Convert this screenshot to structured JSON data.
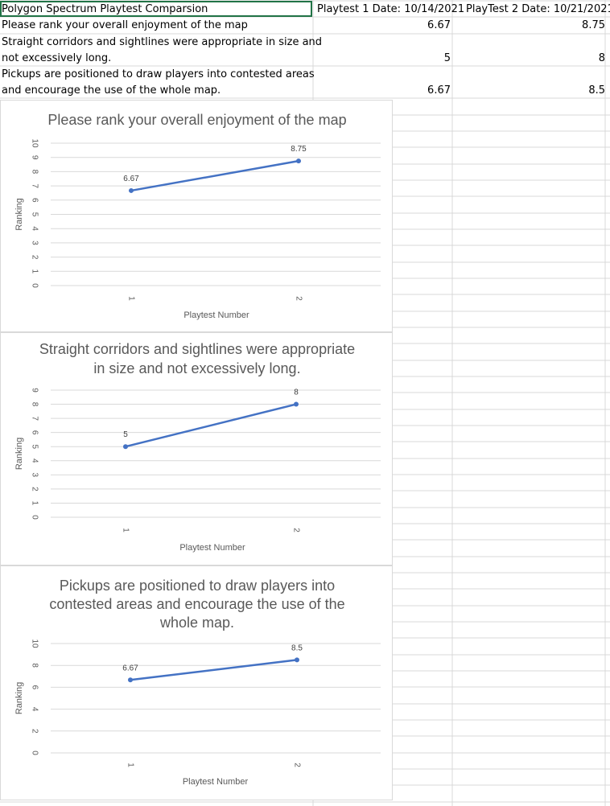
{
  "sheet": {
    "rows": [
      {
        "a": "Polygon Spectrum Playtest Comparsion",
        "b": "Playtest 1 Date: 10/14/2021",
        "c": "PlayTest 2 Date: 10/21/2021"
      },
      {
        "a": "Please rank your overall enjoyment of the map",
        "b": "6.67",
        "c": "8.75"
      },
      {
        "a1": "Straight corridors and sightlines were appropriate in size and",
        "a2": "not excessively long.",
        "b": "5",
        "c": "8"
      },
      {
        "a1": "Pickups are positioned to draw players into contested areas",
        "a2": "and encourage the use of the whole map.",
        "b": "6.67",
        "c": "8.5"
      }
    ]
  },
  "charts": [
    {
      "title_lines": [
        "Please rank your overall enjoyment of the map"
      ],
      "xlabel": "Playtest Number",
      "ylabel": "Ranking",
      "chart_data": {
        "type": "line",
        "x": [
          "1",
          "2"
        ],
        "values": [
          6.67,
          8.75
        ],
        "labels": [
          "6.67",
          "8.75"
        ],
        "yticks": [
          "0",
          "1",
          "2",
          "3",
          "4",
          "5",
          "6",
          "7",
          "8",
          "9",
          "10"
        ],
        "ylim": [
          0,
          10
        ],
        "grid": true,
        "color": "#4472c4"
      }
    },
    {
      "title_lines": [
        "Straight corridors and sightlines were appropriate",
        "in size and not excessively long."
      ],
      "xlabel": "Playtest Number",
      "ylabel": "Ranking",
      "chart_data": {
        "type": "line",
        "x": [
          "1",
          "2"
        ],
        "values": [
          5,
          8
        ],
        "labels": [
          "5",
          "8"
        ],
        "yticks": [
          "0",
          "1",
          "2",
          "3",
          "4",
          "5",
          "6",
          "7",
          "8",
          "9"
        ],
        "ylim": [
          0,
          9
        ],
        "grid": true,
        "color": "#4472c4"
      }
    },
    {
      "title_lines": [
        "Pickups are positioned to draw players into",
        "contested areas and encourage the use of the",
        "whole map."
      ],
      "xlabel": "Playtest Number",
      "ylabel": "Ranking",
      "chart_data": {
        "type": "line",
        "x": [
          "1",
          "2"
        ],
        "values": [
          6.67,
          8.5
        ],
        "labels": [
          "6.67",
          "8.5"
        ],
        "yticks": [
          "0",
          "2",
          "4",
          "6",
          "8",
          "10"
        ],
        "ylim": [
          0,
          10
        ],
        "grid": true,
        "color": "#4472c4"
      }
    }
  ]
}
